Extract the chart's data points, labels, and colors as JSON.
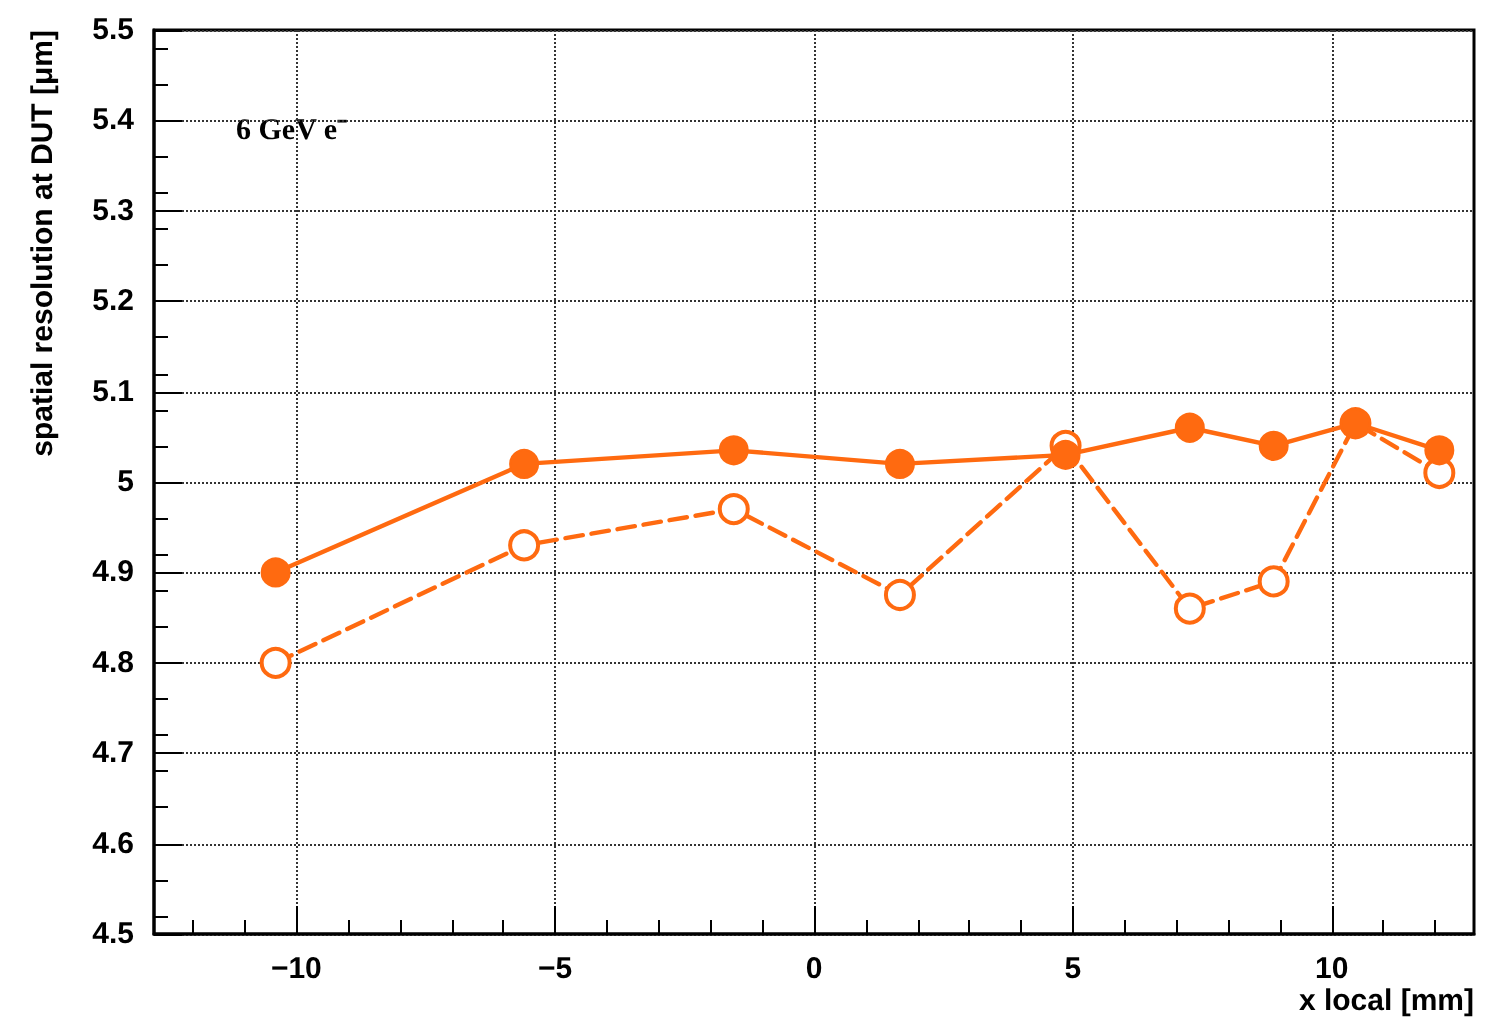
{
  "chart_data": {
    "type": "line",
    "xlabel": "x local [mm]",
    "ylabel": "spatial resolution at DUT [μm]",
    "annotations": [
      "6 GeV e⁻"
    ],
    "xlim": [
      -12.75,
      12.75
    ],
    "xticks": [
      {
        "value": -10,
        "label": "−10"
      },
      {
        "value": -5,
        "label": "−5"
      },
      0,
      5,
      10
    ],
    "ylim": [
      4.5,
      5.5
    ],
    "yticks": [
      4.5,
      4.6,
      4.7,
      4.8,
      4.9,
      5,
      5.1,
      5.2,
      5.3,
      5.4,
      5.5
    ],
    "grid": true,
    "marker": "circle",
    "series": [
      {
        "color": "#ff6a10",
        "line_style": "solid",
        "x": [
          -10.4,
          -5.6,
          -1.55,
          1.66,
          4.86,
          7.26,
          8.88,
          10.46,
          12.08
        ],
        "values": [
          4.9,
          5.02,
          5.035,
          5.02,
          5.03,
          5.06,
          5.04,
          5.065,
          5.035
        ]
      },
      {
        "color": "#ff6a10",
        "line_style": "dashed",
        "x": [
          -10.4,
          -5.6,
          -1.55,
          1.66,
          4.86,
          7.26,
          8.88,
          10.46,
          12.08
        ],
        "values": [
          4.8,
          4.93,
          4.97,
          4.875,
          5.04,
          4.86,
          4.89,
          5.065,
          5.01
        ]
      }
    ]
  }
}
